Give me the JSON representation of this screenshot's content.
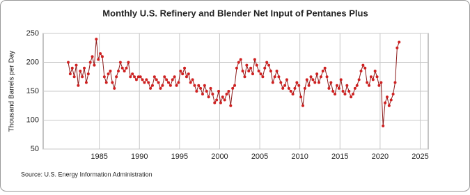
{
  "chart_data": {
    "type": "line",
    "title": "Monthly U.S. Refinery and Blender Net Input of Pentanes Plus",
    "ylabel": "Thousand Barrels per Day",
    "source": "Source: U.S. Energy Information Administration",
    "xlim": [
      1978,
      2026
    ],
    "xticks": [
      1985,
      1990,
      1995,
      2000,
      2005,
      2010,
      2015,
      2020,
      2025
    ],
    "ylim": [
      50,
      250
    ],
    "yticks": [
      50,
      100,
      150,
      200,
      250
    ],
    "grid": true,
    "x": [
      1981.125,
      1981.375,
      1981.625,
      1981.875,
      1982.125,
      1982.375,
      1982.625,
      1982.875,
      1983.125,
      1983.375,
      1983.625,
      1983.875,
      1984.125,
      1984.375,
      1984.625,
      1984.875,
      1985.125,
      1985.375,
      1985.625,
      1985.875,
      1986.125,
      1986.375,
      1986.625,
      1986.875,
      1987.125,
      1987.375,
      1987.625,
      1987.875,
      1988.125,
      1988.375,
      1988.625,
      1988.875,
      1989.125,
      1989.375,
      1989.625,
      1989.875,
      1990.125,
      1990.375,
      1990.625,
      1990.875,
      1991.125,
      1991.375,
      1991.625,
      1991.875,
      1992.125,
      1992.375,
      1992.625,
      1992.875,
      1993.125,
      1993.375,
      1993.625,
      1993.875,
      1994.125,
      1994.375,
      1994.625,
      1994.875,
      1995.125,
      1995.375,
      1995.625,
      1995.875,
      1996.125,
      1996.375,
      1996.625,
      1996.875,
      1997.125,
      1997.375,
      1997.625,
      1997.875,
      1998.125,
      1998.375,
      1998.625,
      1998.875,
      1999.125,
      1999.375,
      1999.625,
      1999.875,
      2000.125,
      2000.375,
      2000.625,
      2000.875,
      2001.125,
      2001.375,
      2001.625,
      2001.875,
      2002.125,
      2002.375,
      2002.625,
      2002.875,
      2003.125,
      2003.375,
      2003.625,
      2003.875,
      2004.125,
      2004.375,
      2004.625,
      2004.875,
      2005.125,
      2005.375,
      2005.625,
      2005.875,
      2006.125,
      2006.375,
      2006.625,
      2006.875,
      2007.125,
      2007.375,
      2007.625,
      2007.875,
      2008.125,
      2008.375,
      2008.625,
      2008.875,
      2009.125,
      2009.375,
      2009.625,
      2009.875,
      2010.125,
      2010.375,
      2010.625,
      2010.875,
      2011.125,
      2011.375,
      2011.625,
      2011.875,
      2012.125,
      2012.375,
      2012.625,
      2012.875,
      2013.125,
      2013.375,
      2013.625,
      2013.875,
      2014.125,
      2014.375,
      2014.625,
      2014.875,
      2015.125,
      2015.375,
      2015.625,
      2015.875,
      2016.125,
      2016.375,
      2016.625,
      2016.875,
      2017.125,
      2017.375,
      2017.625,
      2017.875,
      2018.125,
      2018.375,
      2018.625,
      2018.875,
      2019.125,
      2019.375,
      2019.625,
      2019.875,
      2020.125,
      2020.375,
      2020.625,
      2020.875,
      2021.125,
      2021.375,
      2021.625,
      2021.875,
      2022.125,
      2022.375
    ],
    "series": [
      {
        "name": "Pentanes Plus",
        "color": "#8b1a1a",
        "marker_color": "#d02020",
        "values": [
          200,
          180,
          190,
          175,
          195,
          160,
          185,
          175,
          190,
          165,
          180,
          200,
          210,
          195,
          240,
          205,
          215,
          210,
          175,
          165,
          180,
          185,
          165,
          155,
          175,
          185,
          200,
          190,
          185,
          190,
          200,
          175,
          180,
          175,
          170,
          175,
          175,
          170,
          165,
          170,
          165,
          155,
          160,
          175,
          170,
          165,
          155,
          160,
          175,
          170,
          165,
          160,
          170,
          175,
          160,
          165,
          185,
          180,
          190,
          175,
          180,
          165,
          170,
          160,
          150,
          160,
          155,
          145,
          160,
          150,
          140,
          155,
          145,
          130,
          135,
          150,
          130,
          140,
          135,
          145,
          150,
          125,
          155,
          160,
          190,
          200,
          205,
          185,
          175,
          195,
          185,
          190,
          180,
          205,
          195,
          185,
          180,
          175,
          190,
          200,
          195,
          185,
          165,
          175,
          185,
          175,
          165,
          155,
          160,
          170,
          155,
          150,
          145,
          155,
          165,
          160,
          140,
          125,
          155,
          170,
          160,
          175,
          170,
          165,
          180,
          165,
          175,
          185,
          190,
          175,
          155,
          165,
          150,
          145,
          160,
          155,
          170,
          150,
          145,
          160,
          150,
          140,
          145,
          155,
          160,
          170,
          185,
          195,
          190,
          165,
          160,
          175,
          170,
          185,
          175,
          160,
          165,
          90,
          130,
          140,
          125,
          135,
          145,
          165,
          225,
          235
        ]
      }
    ]
  }
}
